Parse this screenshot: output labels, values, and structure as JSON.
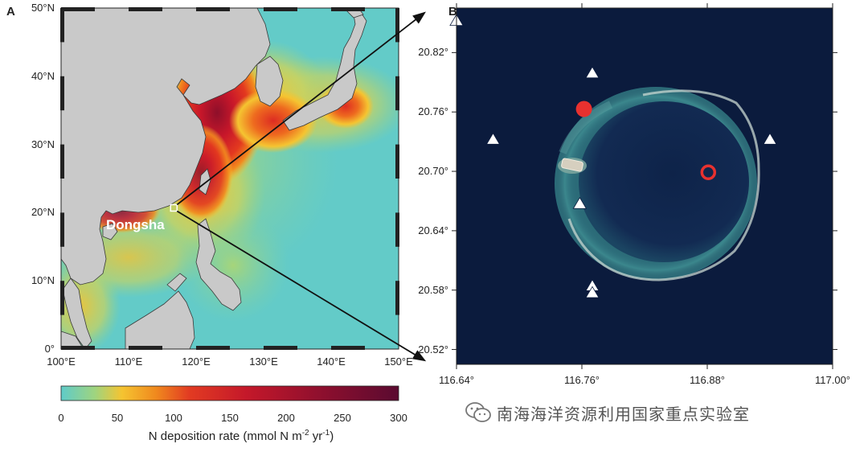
{
  "panel_a": {
    "letter": "A",
    "y_ticks": [
      {
        "label": "50°N",
        "value": 50
      },
      {
        "label": "40°N",
        "value": 40
      },
      {
        "label": "30°N",
        "value": 30
      },
      {
        "label": "20°N",
        "value": 20
      },
      {
        "label": "10°N",
        "value": 10
      },
      {
        "label": "0°",
        "value": 0
      }
    ],
    "x_ticks": [
      {
        "label": "100°E",
        "value": 100
      },
      {
        "label": "110°E",
        "value": 110
      },
      {
        "label": "120°E",
        "value": 120
      },
      {
        "label": "130°E",
        "value": 130
      },
      {
        "label": "140°E",
        "value": 140
      },
      {
        "label": "150°E",
        "value": 150
      }
    ],
    "lon_range": [
      100,
      150
    ],
    "lat_range": [
      0,
      50
    ],
    "site_label": "Dongsha",
    "site_lon": 116.7,
    "site_lat": 20.7
  },
  "colorbar": {
    "label_prefix": "N deposition rate (mmol N m",
    "label_exp1": "-2",
    "label_mid": " yr",
    "label_exp2": "-1",
    "label_suffix": ")",
    "range": [
      0,
      300
    ],
    "ticks": [
      "0",
      "50",
      "100",
      "150",
      "200",
      "250",
      "300"
    ],
    "colors": [
      "#5fcbc9",
      "#9fd47f",
      "#f5c431",
      "#f08a1e",
      "#e23b22",
      "#c4182a",
      "#8c0f2e",
      "#5a0a30"
    ]
  },
  "panel_b": {
    "letter": "B",
    "y_ticks": [
      {
        "label": "20.82°",
        "value": 20.82
      },
      {
        "label": "20.76°",
        "value": 20.76
      },
      {
        "label": "20.70°",
        "value": 20.7
      },
      {
        "label": "20.64°",
        "value": 20.64
      },
      {
        "label": "20.58°",
        "value": 20.58
      },
      {
        "label": "20.52°",
        "value": 20.52
      }
    ],
    "x_ticks": [
      {
        "label": "116.64°",
        "value": 116.64
      },
      {
        "label": "116.76°",
        "value": 116.76
      },
      {
        "label": "116.88°",
        "value": 116.88
      },
      {
        "label": "117.00°",
        "value": 117.0
      }
    ],
    "lon_range": [
      116.64,
      117.0
    ],
    "lat_range": [
      20.505,
      20.865
    ],
    "triangles": [
      {
        "lon": 116.64,
        "lat": 20.852
      },
      {
        "lon": 116.77,
        "lat": 20.799
      },
      {
        "lon": 116.675,
        "lat": 20.732
      },
      {
        "lon": 116.94,
        "lat": 20.732
      },
      {
        "lon": 116.758,
        "lat": 20.667
      },
      {
        "lon": 116.77,
        "lat": 20.584
      },
      {
        "lon": 116.77,
        "lat": 20.577
      }
    ],
    "filled_circles": [
      {
        "lon": 116.762,
        "lat": 20.763
      }
    ],
    "open_circles": [
      {
        "lon": 116.881,
        "lat": 20.699
      }
    ],
    "marker_colors": {
      "triangle": "#ffffff",
      "circle": "#e8312f"
    }
  },
  "watermark": {
    "text": "南海海洋资源利用国家重点实验室",
    "icon": "wechat-icon"
  }
}
